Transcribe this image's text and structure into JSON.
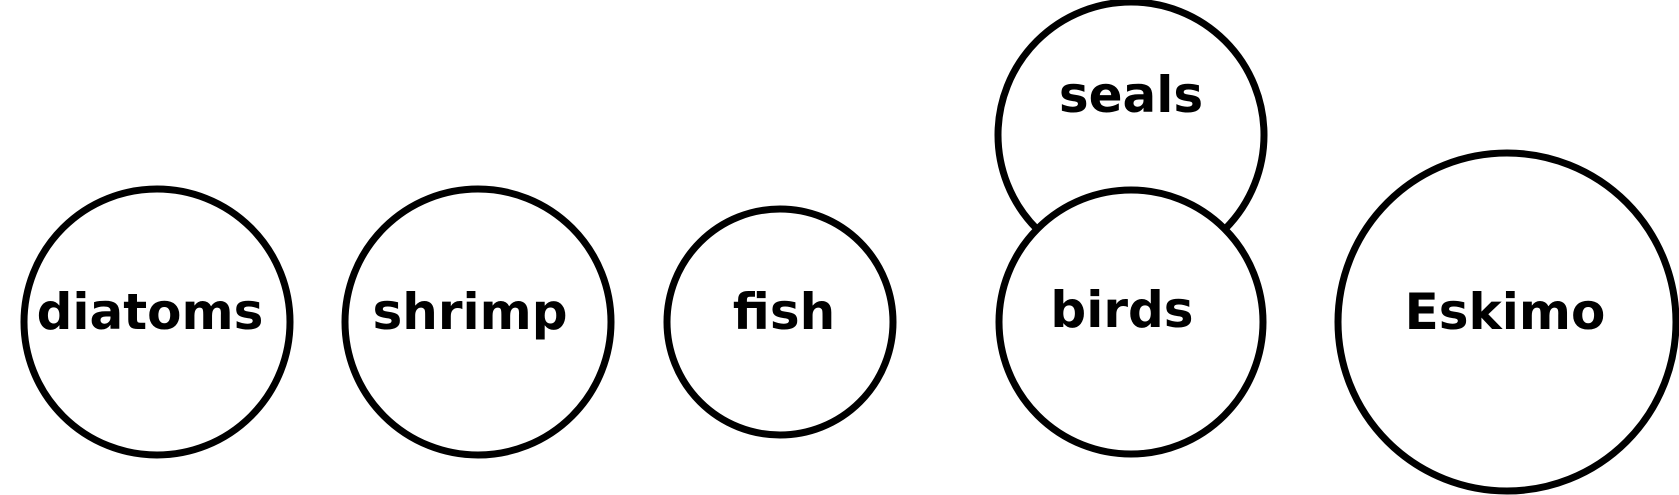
{
  "diagram": {
    "nodes": [
      {
        "id": "diatoms",
        "label": "diatoms"
      },
      {
        "id": "shrimp",
        "label": "shrimp"
      },
      {
        "id": "fish",
        "label": "fish"
      },
      {
        "id": "seals",
        "label": "seals"
      },
      {
        "id": "birds",
        "label": "birds"
      },
      {
        "id": "eskimo",
        "label": "Eskimo"
      }
    ],
    "colors": {
      "stroke": "#000000",
      "fill": "#ffffff",
      "text": "#000000"
    }
  }
}
